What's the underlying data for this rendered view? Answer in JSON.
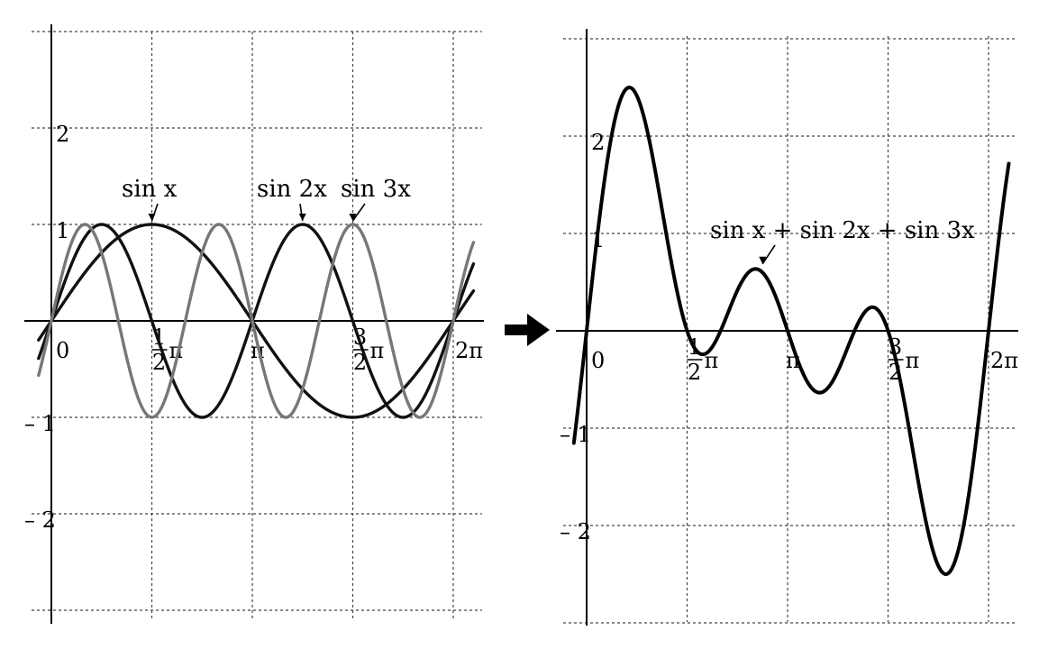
{
  "chart_data": [
    {
      "type": "line",
      "x_ticks": [
        {
          "value": 0,
          "label": "0"
        },
        {
          "value": 1.5708,
          "label": "½π",
          "num": "1",
          "den": "2",
          "sym": "π"
        },
        {
          "value": 3.1416,
          "label": "π",
          "sym": "π"
        },
        {
          "value": 4.7124,
          "label": "³⁄₂π",
          "num": "3",
          "den": "2",
          "sym": "π"
        },
        {
          "value": 6.2832,
          "label": "2π"
        }
      ],
      "y_ticks": [
        {
          "value": 2,
          "label": "2"
        },
        {
          "value": 1,
          "label": "1"
        },
        {
          "value": -1,
          "label": "– 1"
        },
        {
          "value": -2,
          "label": "– 2"
        }
      ],
      "xlim": [
        -0.2,
        6.6
      ],
      "ylim": [
        -3.0,
        3.0
      ],
      "grid": true,
      "series": [
        {
          "name": "sin x",
          "expr": "sin(x)",
          "color": "#111111",
          "width": 3.4
        },
        {
          "name": "sin 2x",
          "expr": "sin(2x)",
          "color": "#111111",
          "width": 3.4
        },
        {
          "name": "sin 3x",
          "expr": "sin(3x)",
          "color": "#777777",
          "width": 3.4
        }
      ],
      "annotations": [
        {
          "text": "sin x",
          "point": [
            1.5708,
            1.0
          ]
        },
        {
          "text": "sin 2x",
          "point": [
            3.927,
            1.0
          ]
        },
        {
          "text": "sin 3x",
          "point": [
            4.712,
            1.0
          ]
        }
      ]
    },
    {
      "type": "line",
      "x_ticks": [
        {
          "value": 0,
          "label": "0"
        },
        {
          "value": 1.5708,
          "label": "½π",
          "num": "1",
          "den": "2",
          "sym": "π"
        },
        {
          "value": 3.1416,
          "label": "π",
          "sym": "π"
        },
        {
          "value": 4.7124,
          "label": "³⁄₂π",
          "num": "3",
          "den": "2",
          "sym": "π"
        },
        {
          "value": 6.2832,
          "label": "2π"
        }
      ],
      "y_ticks": [
        {
          "value": 2,
          "label": "2"
        },
        {
          "value": 1,
          "label": "1"
        },
        {
          "value": -1,
          "label": "– 1"
        },
        {
          "value": -2,
          "label": "– 2"
        }
      ],
      "xlim": [
        -0.2,
        6.6
      ],
      "ylim": [
        -3.0,
        3.0
      ],
      "grid": true,
      "series": [
        {
          "name": "sin x + sin 2x + sin 3x",
          "expr": "sin(x)+sin(2x)+sin(3x)",
          "color": "#000000",
          "width": 4
        }
      ],
      "annotations": [
        {
          "text": "sin x + sin 2x + sin 3x",
          "point": [
            2.75,
            0.65
          ]
        }
      ]
    }
  ],
  "arrow": {
    "symbol": "➡",
    "color": "#000000"
  }
}
